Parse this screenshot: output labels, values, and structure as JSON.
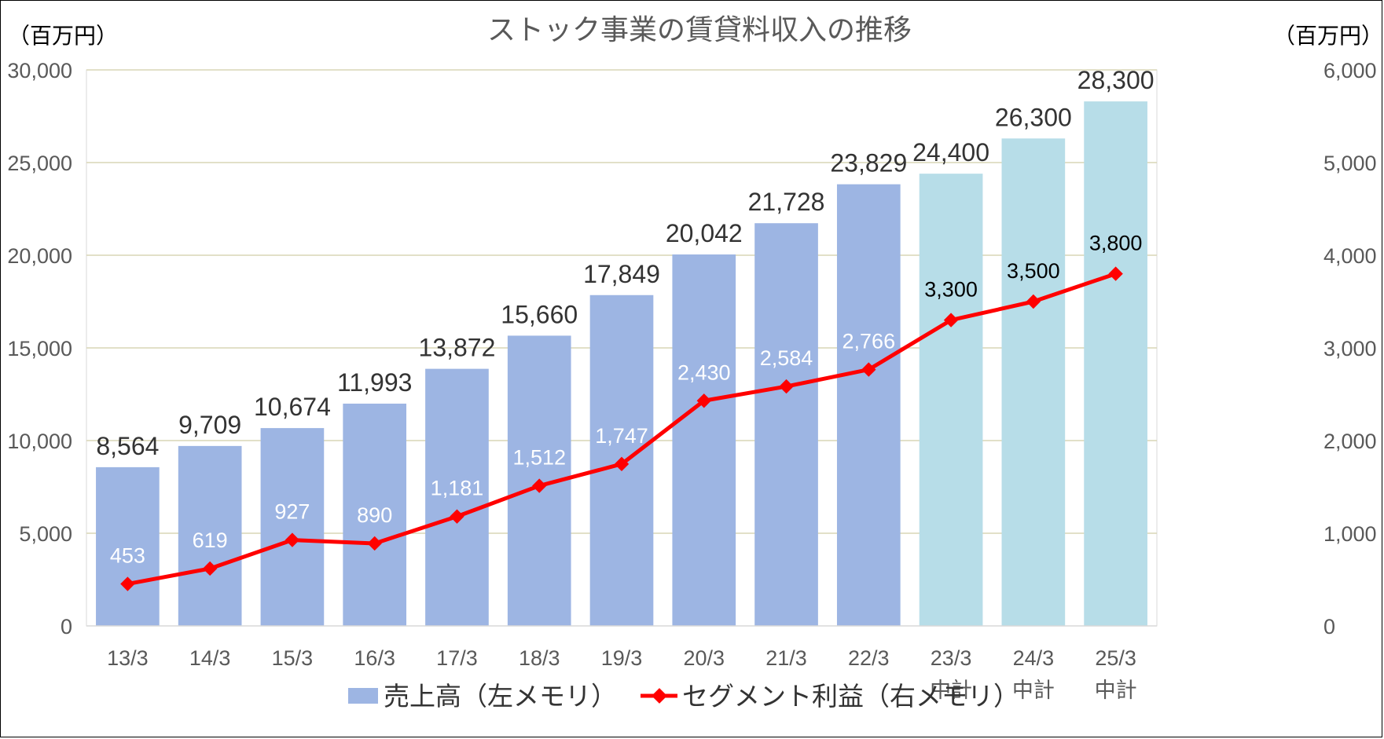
{
  "chart_data": {
    "type": "bar",
    "title": "ストック事業の賃貸料収入の推移",
    "left_unit": "（百万円）",
    "right_unit": "（百万円）",
    "categories": [
      [
        "13/3"
      ],
      [
        "14/3"
      ],
      [
        "15/3"
      ],
      [
        "16/3"
      ],
      [
        "17/3"
      ],
      [
        "18/3"
      ],
      [
        "19/3"
      ],
      [
        "20/3"
      ],
      [
        "21/3"
      ],
      [
        "22/3"
      ],
      [
        "23/3",
        "中計"
      ],
      [
        "24/3",
        "中計"
      ],
      [
        "25/3",
        "中計"
      ]
    ],
    "series": [
      {
        "name": "売上高（左メモリ）",
        "type": "bar",
        "axis": "left",
        "values": [
          8564,
          9709,
          10674,
          11993,
          13872,
          15660,
          17849,
          20042,
          21728,
          23829,
          24400,
          26300,
          28300
        ],
        "labels": [
          "8,564",
          "9,709",
          "10,674",
          "11,993",
          "13,872",
          "15,660",
          "17,849",
          "20,042",
          "21,728",
          "23,829",
          "24,400",
          "26,300",
          "28,300"
        ],
        "color_actual": "#9DB5E3",
        "color_plan": "#B7DDE8"
      },
      {
        "name": "セグメント利益（右メモリ）",
        "type": "line",
        "axis": "right",
        "values": [
          453,
          619,
          927,
          890,
          1181,
          1512,
          1747,
          2430,
          2584,
          2766,
          3300,
          3500,
          3800
        ],
        "labels": [
          "453",
          "619",
          "927",
          "890",
          "1,181",
          "1,512",
          "1,747",
          "2,430",
          "2,584",
          "2,766",
          "3,300",
          "3,500",
          "3,800"
        ],
        "color": "#FF0000"
      }
    ],
    "plan_from_index": 10,
    "ylim_left": [
      0,
      30000
    ],
    "ylim_right": [
      0,
      6000
    ],
    "yticks_left": [
      "0",
      "5,000",
      "10,000",
      "15,000",
      "20,000",
      "25,000",
      "30,000"
    ],
    "yticks_right": [
      "0",
      "1,000",
      "2,000",
      "3,000",
      "4,000",
      "5,000",
      "6,000"
    ],
    "grid": true,
    "legend_position": "bottom"
  }
}
